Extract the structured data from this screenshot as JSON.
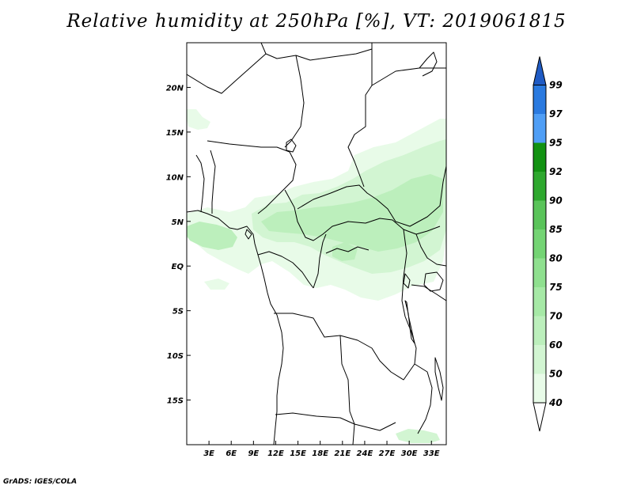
{
  "title": "Relative humidity at 250hPa [%], VT: 2019061815",
  "credit": "GrADS: IGES/COLA",
  "map": {
    "lon_range": [
      0,
      35
    ],
    "lat_range": [
      -20,
      25
    ],
    "lon_ticks": [
      {
        "value": 3,
        "label": "3E"
      },
      {
        "value": 6,
        "label": "6E"
      },
      {
        "value": 9,
        "label": "9E"
      },
      {
        "value": 12,
        "label": "12E"
      },
      {
        "value": 15,
        "label": "15E"
      },
      {
        "value": 18,
        "label": "18E"
      },
      {
        "value": 21,
        "label": "21E"
      },
      {
        "value": 24,
        "label": "24E"
      },
      {
        "value": 27,
        "label": "27E"
      },
      {
        "value": 30,
        "label": "30E"
      },
      {
        "value": 33,
        "label": "33E"
      }
    ],
    "lat_ticks": [
      {
        "value": 20,
        "label": "20N"
      },
      {
        "value": 15,
        "label": "15N"
      },
      {
        "value": 10,
        "label": "10N"
      },
      {
        "value": 5,
        "label": "5N"
      },
      {
        "value": 0,
        "label": "EQ"
      },
      {
        "value": -5,
        "label": "5S"
      },
      {
        "value": -10,
        "label": "10S"
      },
      {
        "value": -15,
        "label": "15S"
      }
    ]
  },
  "colorbar": {
    "levels": [
      "40",
      "50",
      "60",
      "70",
      "75",
      "80",
      "85",
      "90",
      "92",
      "95",
      "97",
      "99"
    ],
    "colors": [
      "#ffffff",
      "#e8fbe8",
      "#d2f5d2",
      "#bcefbc",
      "#a6e9a6",
      "#8fe08f",
      "#74d474",
      "#5ac45a",
      "#2ea82e",
      "#129212",
      "#4f9ef5",
      "#2a7ae0",
      "#1f5bc4"
    ]
  },
  "humidity_field_colors": [
    "#e8fbe8",
    "#d2f5d2",
    "#bcefbc"
  ]
}
